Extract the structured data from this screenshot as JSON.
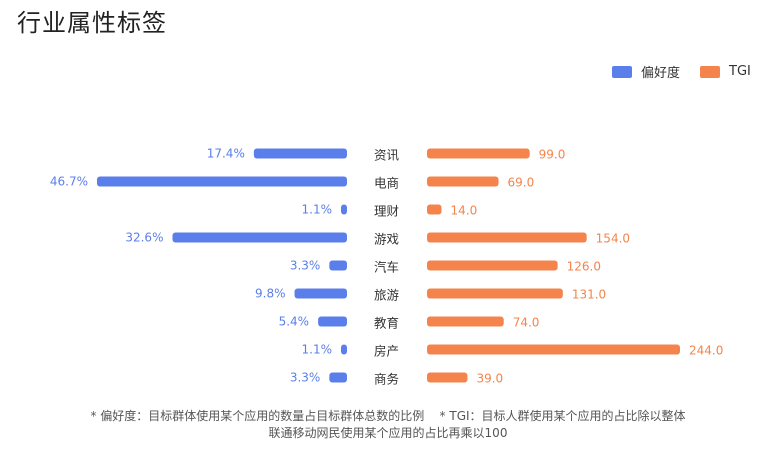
{
  "title": "行业属性标签",
  "colors": {
    "preference": "#5b7fea",
    "tgi": "#f5844c",
    "label": "#333333"
  },
  "chart_data": {
    "type": "bar",
    "categories": [
      "资讯",
      "电商",
      "理财",
      "游戏",
      "汽车",
      "旅游",
      "教育",
      "房产",
      "商务"
    ],
    "series": [
      {
        "name": "偏好度",
        "values": [
          17.4,
          46.7,
          1.1,
          32.6,
          3.3,
          9.8,
          5.4,
          1.1,
          3.3
        ],
        "labels": [
          "17.4%",
          "46.7%",
          "1.1%",
          "32.6%",
          "3.3%",
          "9.8%",
          "5.4%",
          "1.1%",
          "3.3%"
        ]
      },
      {
        "name": "TGI",
        "values": [
          99.0,
          69.0,
          14.0,
          154.0,
          126.0,
          131.0,
          74.0,
          244.0,
          39.0
        ],
        "labels": [
          "99.0",
          "69.0",
          "14.0",
          "154.0",
          "126.0",
          "131.0",
          "74.0",
          "244.0",
          "39.0"
        ]
      }
    ],
    "legend_position": "top-right"
  },
  "footnote": {
    "line1": "* 偏好度：目标群体使用某个应用的数量占目标群体总数的比例    * TGI：目标人群使用某个应用的占比除以整体",
    "line2": "联通移动网民使用某个应用的占比再乘以100"
  }
}
